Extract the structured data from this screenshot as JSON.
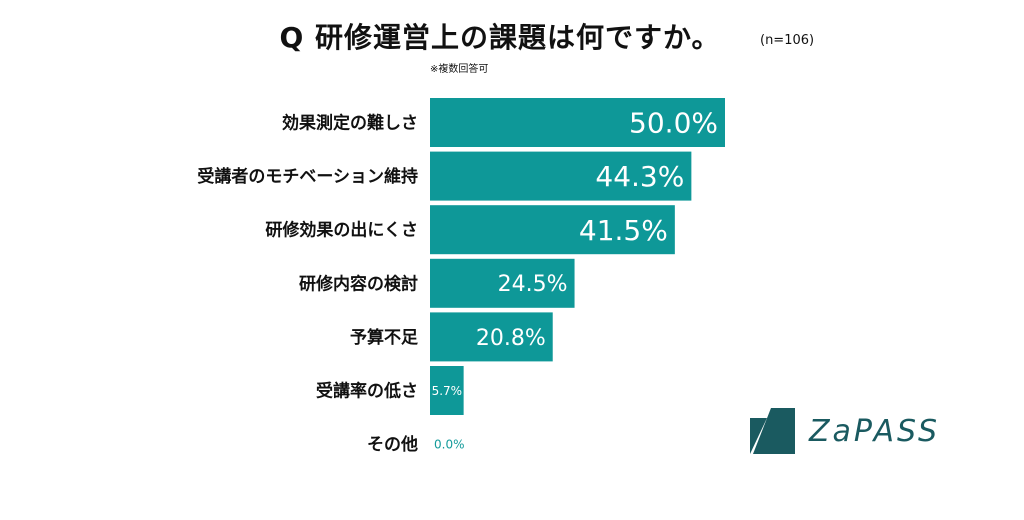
{
  "title": "Q 研修運営上の課題は何ですか。",
  "sample_size": "(n=106)",
  "note": "※複数回答可",
  "brand": {
    "logo_text": "ZaPASS",
    "color": "#1a5a60"
  },
  "colors": {
    "bar": "#0e9898",
    "value_outside": "#149b9b"
  },
  "chart_data": {
    "type": "bar",
    "orientation": "horizontal",
    "categories": [
      "効果測定の難しさ",
      "受講者のモチベーション維持",
      "研修効果の出にくさ",
      "研修内容の検討",
      "予算不足",
      "受講率の低さ",
      "その他"
    ],
    "values": [
      50.0,
      44.3,
      41.5,
      24.5,
      20.8,
      5.7,
      0.0
    ],
    "labels": [
      "50.0%",
      "44.3%",
      "41.5%",
      "24.5%",
      "20.8%",
      "5.7%",
      "0.0%"
    ],
    "unit": "%",
    "xlim": [
      0,
      50
    ],
    "grid": false,
    "title": "Q 研修運営上の課題は何ですか。"
  }
}
